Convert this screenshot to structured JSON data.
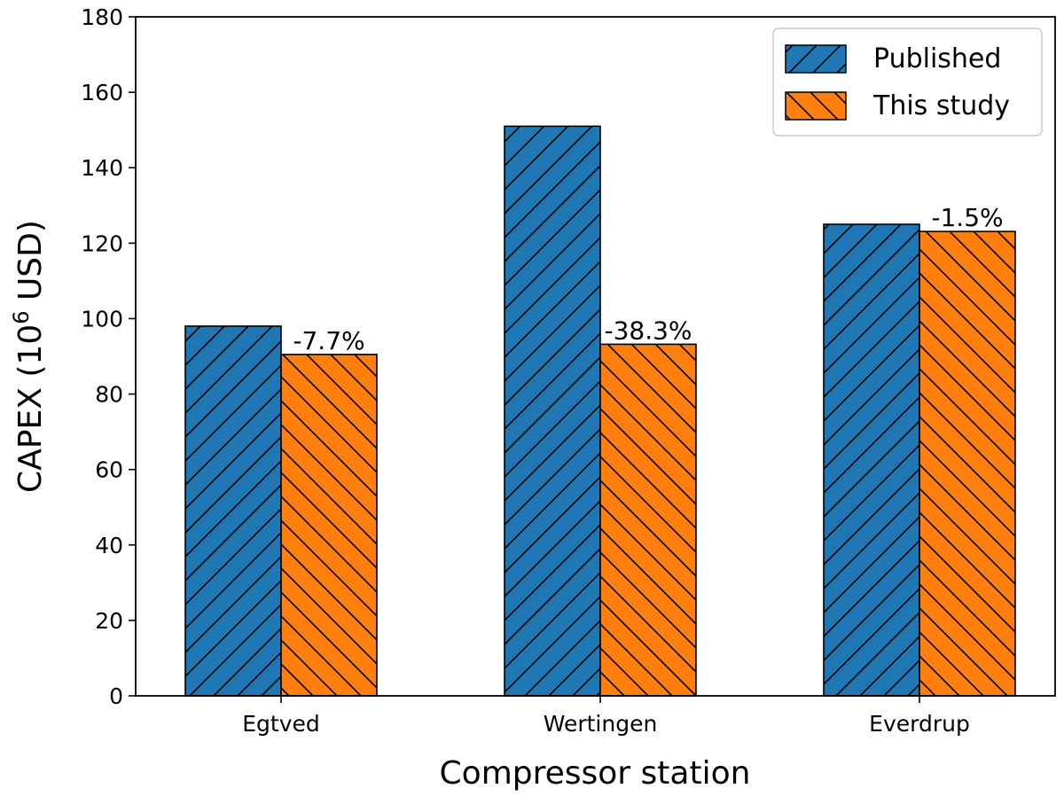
{
  "chart_data": {
    "type": "bar",
    "categories": [
      "Egtved",
      "Wertingen",
      "Everdrup"
    ],
    "series": [
      {
        "name": "Published",
        "values": [
          98,
          151,
          125
        ],
        "color": "#1f77b4",
        "hatch": "forward-diagonal"
      },
      {
        "name": "This study",
        "values": [
          90.5,
          93.2,
          123.1
        ],
        "color": "#ff7f0e",
        "hatch": "back-diagonal"
      }
    ],
    "bar_labels": [
      "-7.7%",
      "-38.3%",
      "-1.5%"
    ],
    "xlabel": "Compressor station",
    "ylabel_main": "CAPEX (10",
    "ylabel_sup": "6",
    "ylabel_tail": " USD)",
    "ylim": [
      0,
      180
    ],
    "yticks": [
      0,
      20,
      40,
      60,
      80,
      100,
      120,
      140,
      160,
      180
    ],
    "grid": false,
    "legend_position": "top-right"
  }
}
